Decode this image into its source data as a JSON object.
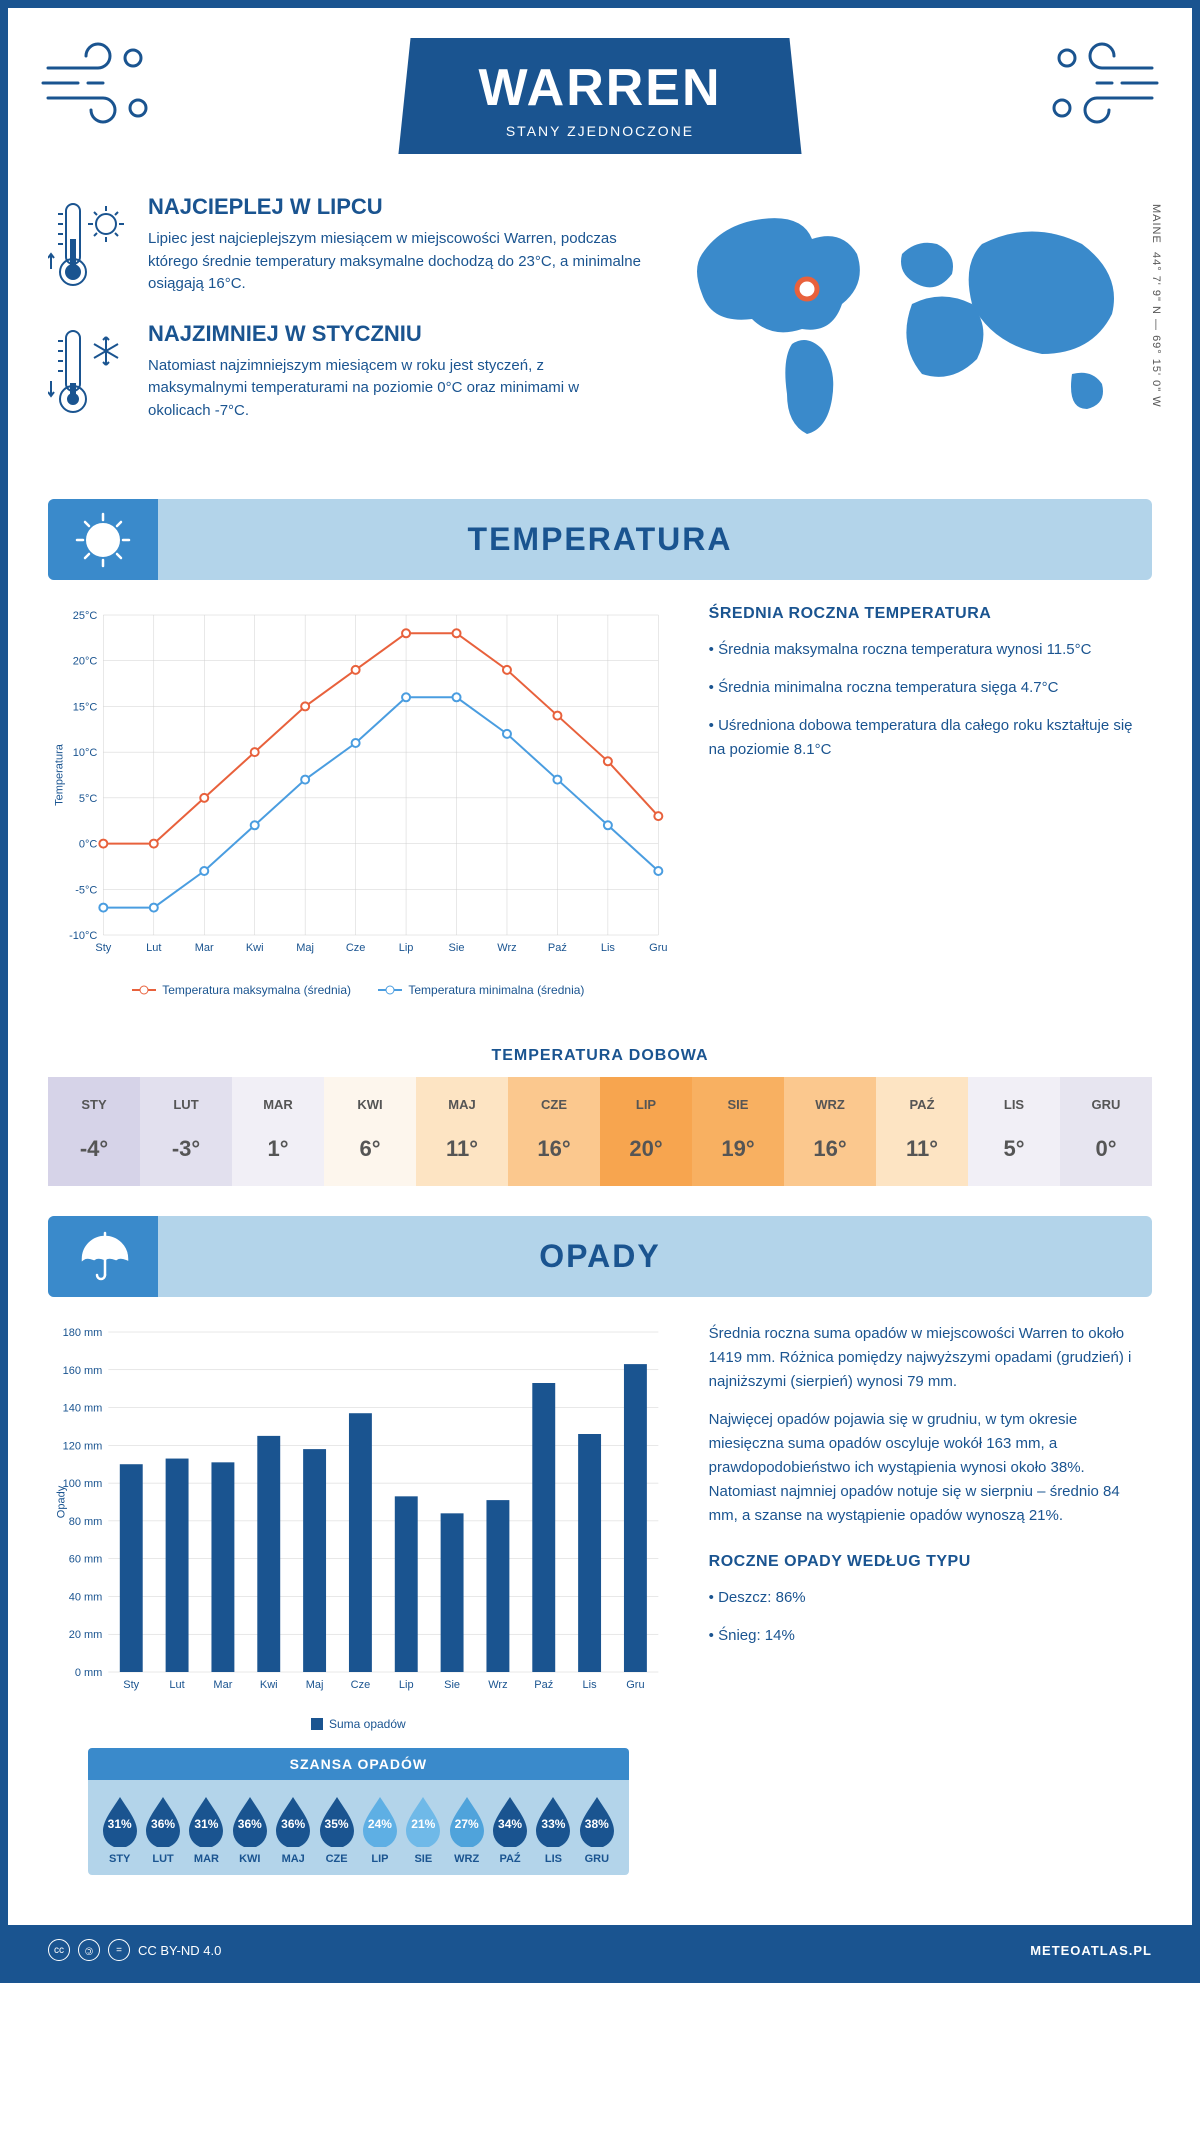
{
  "header": {
    "title": "WARREN",
    "subtitle": "STANY ZJEDNOCZONE"
  },
  "coords": {
    "lat": "44° 7' 9\" N — 69° 15' 0\" W",
    "region": "MAINE"
  },
  "intro": {
    "warmest": {
      "title": "NAJCIEPLEJ W LIPCU",
      "text": "Lipiec jest najcieplejszym miesiącem w miejscowości Warren, podczas którego średnie temperatury maksymalne dochodzą do 23°C, a minimalne osiągają 16°C."
    },
    "coldest": {
      "title": "NAJZIMNIEJ W STYCZNIU",
      "text": "Natomiast najzimniejszym miesiącem w roku jest styczeń, z maksymalnymi temperaturami na poziomie 0°C oraz minimami w okolicach -7°C."
    }
  },
  "sections": {
    "temp": "TEMPERATURA",
    "precip": "OPADY"
  },
  "temp_chart": {
    "type": "line",
    "months": [
      "Sty",
      "Lut",
      "Mar",
      "Kwi",
      "Maj",
      "Cze",
      "Lip",
      "Sie",
      "Wrz",
      "Paź",
      "Lis",
      "Gru"
    ],
    "ylabel": "Temperatura",
    "ylim": [
      -10,
      25
    ],
    "ytick_step": 5,
    "ytick_suffix": "°C",
    "series": {
      "max": {
        "label": "Temperatura maksymalna (średnia)",
        "color": "#e8613c",
        "values": [
          0,
          0,
          5,
          10,
          15,
          19,
          23,
          23,
          19,
          14,
          9,
          3
        ]
      },
      "min": {
        "label": "Temperatura minimalna (średnia)",
        "color": "#4a9de0",
        "values": [
          -7,
          -7,
          -3,
          2,
          7,
          11,
          16,
          16,
          12,
          7,
          2,
          -3
        ]
      }
    },
    "background": "#ffffff",
    "grid_color": "#d8d8d8",
    "marker": "circle-hollow",
    "line_width": 2
  },
  "temp_annual": {
    "title": "ŚREDNIA ROCZNA TEMPERATURA",
    "bullets": [
      "Średnia maksymalna roczna temperatura wynosi 11.5°C",
      "Średnia minimalna roczna temperatura sięga 4.7°C",
      "Uśredniona dobowa temperatura dla całego roku kształtuje się na poziomie 8.1°C"
    ]
  },
  "dobowa": {
    "title": "TEMPERATURA DOBOWA",
    "months": [
      "STY",
      "LUT",
      "MAR",
      "KWI",
      "MAJ",
      "CZE",
      "LIP",
      "SIE",
      "WRZ",
      "PAŹ",
      "LIS",
      "GRU"
    ],
    "values": [
      "-4°",
      "-3°",
      "1°",
      "6°",
      "11°",
      "16°",
      "20°",
      "19°",
      "16°",
      "11°",
      "5°",
      "0°"
    ],
    "bg_colors": [
      "#d6d3e8",
      "#e2e0ee",
      "#f1eff6",
      "#fdf6ed",
      "#fde4c3",
      "#fbc88e",
      "#f7a54f",
      "#f8b061",
      "#fbc88e",
      "#fde4c3",
      "#f1eff6",
      "#e7e5f0"
    ],
    "text_color": "#555"
  },
  "precip_chart": {
    "type": "bar",
    "months": [
      "Sty",
      "Lut",
      "Mar",
      "Kwi",
      "Maj",
      "Cze",
      "Lip",
      "Sie",
      "Wrz",
      "Paź",
      "Lis",
      "Gru"
    ],
    "ylabel": "Opady",
    "ylim": [
      0,
      180
    ],
    "ytick_step": 20,
    "ytick_suffix": " mm",
    "values": [
      110,
      113,
      111,
      125,
      118,
      137,
      93,
      84,
      91,
      153,
      126,
      163
    ],
    "bar_color": "#1a5490",
    "bar_width": 0.5,
    "legend": "Suma opadów",
    "background": "#ffffff",
    "grid_color": "#d8d8d8"
  },
  "precip_text": {
    "p1": "Średnia roczna suma opadów w miejscowości Warren to około 1419 mm. Różnica pomiędzy najwyższymi opadami (grudzień) i najniższymi (sierpień) wynosi 79 mm.",
    "p2": "Najwięcej opadów pojawia się w grudniu, w tym okresie miesięczna suma opadów oscyluje wokół 163 mm, a prawdopodobieństwo ich wystąpienia wynosi około 38%. Natomiast najmniej opadów notuje się w sierpniu – średnio 84 mm, a szanse na wystąpienie opadów wynoszą 21%."
  },
  "precip_type": {
    "title": "ROCZNE OPADY WEDŁUG TYPU",
    "bullets": [
      "Deszcz: 86%",
      "Śnieg: 14%"
    ]
  },
  "szansa": {
    "title": "SZANSA OPADÓW",
    "months": [
      "STY",
      "LUT",
      "MAR",
      "KWI",
      "MAJ",
      "CZE",
      "LIP",
      "SIE",
      "WRZ",
      "PAŹ",
      "LIS",
      "GRU"
    ],
    "values": [
      "31%",
      "36%",
      "31%",
      "36%",
      "36%",
      "35%",
      "24%",
      "21%",
      "27%",
      "34%",
      "33%",
      "38%"
    ],
    "drop_colors": [
      "#1a5490",
      "#1a5490",
      "#1a5490",
      "#1a5490",
      "#1a5490",
      "#1a5490",
      "#5eafe4",
      "#6fb9e8",
      "#4fa3db",
      "#1a5490",
      "#1a5490",
      "#1a5490"
    ]
  },
  "footer": {
    "license": "CC BY-ND 4.0",
    "site": "METEOATLAS.PL"
  },
  "colors": {
    "brand": "#1a5490",
    "light": "#b3d4ea",
    "accent": "#3a8acb"
  }
}
